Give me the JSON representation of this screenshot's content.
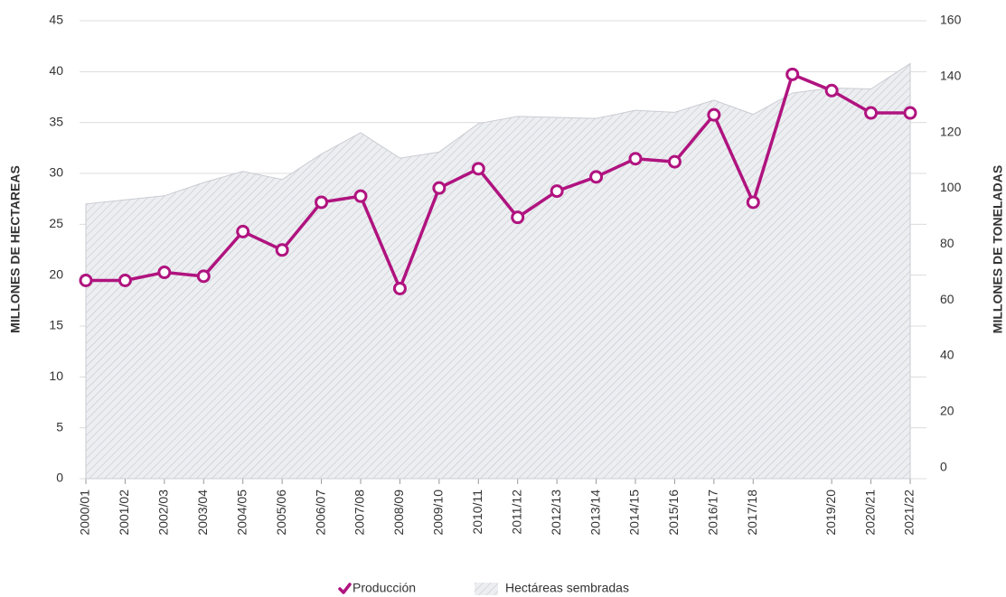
{
  "chart_data": {
    "type": "line",
    "categories": [
      "2000/01",
      "2001/02",
      "2002/03",
      "2003/04",
      "2004/05",
      "2005/06",
      "2006/07",
      "2007/08",
      "2008/09",
      "2009/10",
      "2010/11",
      "2011/12",
      "2012/13",
      "2013/14",
      "2014/15",
      "2015/16",
      "2016/17",
      "2017/18",
      null,
      "2019/20",
      "2020/21",
      "2021/22"
    ],
    "series": [
      {
        "name": "Hectáreas sembradas",
        "type": "area",
        "color": "#c9ccd2",
        "axis": "y",
        "values": [
          27.0,
          27.4,
          27.8,
          29.1,
          30.2,
          29.4,
          31.9,
          34.0,
          31.5,
          32.1,
          34.9,
          35.6,
          35.5,
          35.4,
          36.2,
          36.0,
          37.2,
          35.8,
          37.9,
          38.4,
          38.3,
          40.8
        ]
      },
      {
        "name": "Producción",
        "type": "line",
        "color": "#b0137f",
        "axis": "y2",
        "values": [
          67.0,
          67.0,
          69.9,
          68.5,
          84.5,
          77.9,
          95.0,
          97.2,
          64.1,
          100.1,
          107.0,
          89.6,
          99.0,
          104.1,
          110.6,
          109.5,
          126.3,
          95.0,
          140.8,
          135.0,
          127.0,
          127.0
        ]
      }
    ],
    "ylabel": "MILLONES DE HECTAREAS",
    "y2label": "MILLONES DE TONELADAS",
    "ylim": [
      0,
      45
    ],
    "yticks": [
      0,
      5,
      10,
      15,
      20,
      25,
      30,
      35,
      40,
      45
    ],
    "y2lim": [
      -4,
      160
    ],
    "y2ticks": [
      0,
      20,
      40,
      60,
      80,
      100,
      120,
      140,
      160
    ],
    "grid": true,
    "legend": "bottom"
  }
}
